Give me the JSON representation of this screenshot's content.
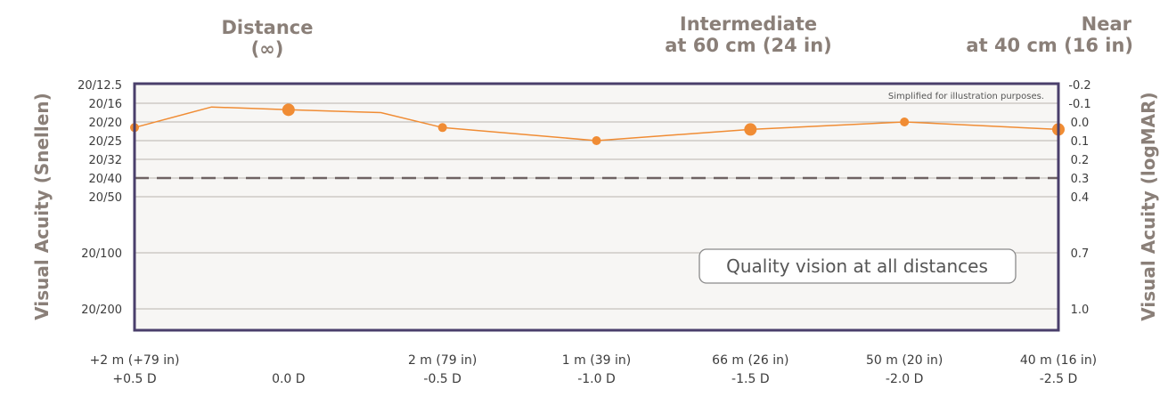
{
  "header": {
    "distance_line1": "Distance",
    "distance_line2": "(∞)",
    "intermediate_line1": "Intermediate",
    "intermediate_line2": "at 60 cm (24 in)",
    "near_line1": "Near",
    "near_line2": "at 40 cm (16 in)"
  },
  "note": "Simplified for illustration purposes.",
  "callout": "Quality vision at all distances",
  "colors": {
    "line": "#f08c34",
    "frame": "#4a3f6b",
    "threshold": "#6e6262",
    "header_text": "#8a7f78"
  },
  "chart_data": {
    "type": "line",
    "title": "",
    "ylabel_left": "Visual Acuity (Snellen)",
    "ylabel_right": "Visual Acuity (logMAR)",
    "ylim_logmar": [
      -0.2,
      1.1
    ],
    "y_inverted": true,
    "grid": true,
    "x_ticks": [
      {
        "line1": "+2 m (+79 in)",
        "line2": "+0.5 D",
        "defocus": 0.5
      },
      {
        "line1": "",
        "line2": "0.0 D",
        "defocus": 0.0
      },
      {
        "line1": "2 m (79 in)",
        "line2": "-0.5 D",
        "defocus": -0.5
      },
      {
        "line1": "1 m (39 in)",
        "line2": "-1.0 D",
        "defocus": -1.0
      },
      {
        "line1": "66 m (26 in)",
        "line2": "-1.5 D",
        "defocus": -1.5
      },
      {
        "line1": "50 m (20 in)",
        "line2": "-2.0 D",
        "defocus": -2.0
      },
      {
        "line1": "40 m (16 in)",
        "line2": "-2.5 D",
        "defocus": -2.5
      }
    ],
    "snellen_ticks": [
      {
        "label": "20/12.5",
        "logmar": -0.2
      },
      {
        "label": "20/16",
        "logmar": -0.1
      },
      {
        "label": "20/20",
        "logmar": 0.0
      },
      {
        "label": "20/25",
        "logmar": 0.1
      },
      {
        "label": "20/32",
        "logmar": 0.2
      },
      {
        "label": "20/40",
        "logmar": 0.3
      },
      {
        "label": "20/50",
        "logmar": 0.4
      },
      {
        "label": "20/100",
        "logmar": 0.7
      },
      {
        "label": "20/200",
        "logmar": 1.0
      }
    ],
    "logmar_ticks": [
      {
        "label": "-0.2",
        "logmar": -0.2
      },
      {
        "label": "-0.1",
        "logmar": -0.1
      },
      {
        "label": "0.0",
        "logmar": 0.0
      },
      {
        "label": "0.1",
        "logmar": 0.1
      },
      {
        "label": "0.2",
        "logmar": 0.2
      },
      {
        "label": "0.3",
        "logmar": 0.3
      },
      {
        "label": "0.4",
        "logmar": 0.4
      },
      {
        "label": "0.7",
        "logmar": 0.7
      },
      {
        "label": "1.0",
        "logmar": 1.0
      }
    ],
    "threshold_logmar": 0.3,
    "series": [
      {
        "points": [
          {
            "defocus": 0.5,
            "logmar": 0.03,
            "marker": "medium"
          },
          {
            "defocus": 0.25,
            "logmar": -0.08,
            "marker": "none"
          },
          {
            "defocus": 0.0,
            "logmar": -0.065,
            "marker": "large"
          },
          {
            "defocus": -0.3,
            "logmar": -0.05,
            "marker": "none"
          },
          {
            "defocus": -0.5,
            "logmar": 0.03,
            "marker": "medium"
          },
          {
            "defocus": -1.0,
            "logmar": 0.1,
            "marker": "medium"
          },
          {
            "defocus": -1.5,
            "logmar": 0.04,
            "marker": "large"
          },
          {
            "defocus": -2.0,
            "logmar": 0.0,
            "marker": "medium"
          },
          {
            "defocus": -2.5,
            "logmar": 0.04,
            "marker": "large"
          }
        ]
      }
    ]
  }
}
